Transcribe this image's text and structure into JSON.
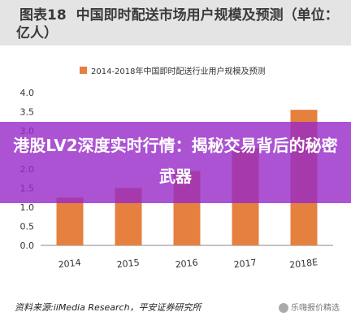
{
  "figure": {
    "label": "图表18",
    "title": "中国即时配送市场用户规模及预测（单位：亿人）"
  },
  "chart_data": {
    "type": "bar",
    "legend_label": "2014-2018年中国即时配送行业用户规模及预测",
    "legend_position": "top",
    "categories": [
      "2014",
      "2015",
      "2016",
      "2017",
      "2018E"
    ],
    "values": [
      1.25,
      1.5,
      1.95,
      2.55,
      3.55
    ],
    "yticks": [
      "0.0",
      "0.5",
      "1.0",
      "1.5",
      "2.0",
      "2.5",
      "3.0",
      "3.5",
      "4.0"
    ],
    "ylim": [
      0,
      4
    ],
    "grid": false,
    "bar_color": "#e6803f"
  },
  "source": "资料来源:iiMedia Research，平安证券研究所",
  "watermark": "乐嗨报价精选",
  "overlay": {
    "text": "港股LV2深度实时行情：揭秘交易背后的秘密武器"
  }
}
